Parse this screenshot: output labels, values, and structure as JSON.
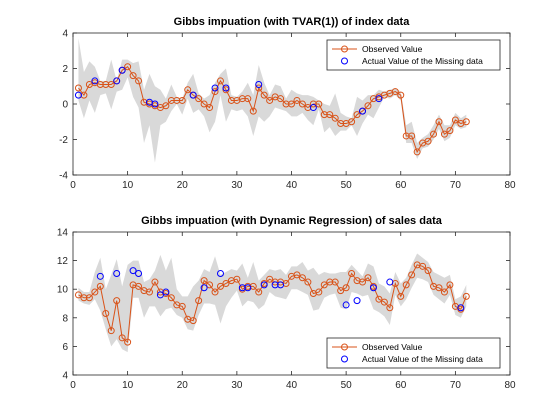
{
  "chart_data": [
    {
      "type": "line",
      "title": "Gibbs impuation (with TVAR(1)) of index data",
      "xlabel": "",
      "ylabel": "",
      "xlim": [
        0,
        80
      ],
      "ylim": [
        -4,
        4
      ],
      "xticks": [
        0,
        10,
        20,
        30,
        40,
        50,
        60,
        70,
        80
      ],
      "yticks": [
        -4,
        -2,
        0,
        2,
        4
      ],
      "legend_position": "top-right",
      "series": [
        {
          "name": "Observed Value",
          "style": "line-with-circle-markers",
          "color": "#d95319",
          "x": [
            1,
            2,
            3,
            4,
            5,
            6,
            7,
            8,
            9,
            10,
            11,
            12,
            13,
            14,
            15,
            16,
            17,
            18,
            19,
            20,
            21,
            22,
            23,
            24,
            25,
            26,
            27,
            28,
            29,
            30,
            31,
            32,
            33,
            34,
            35,
            36,
            37,
            38,
            39,
            40,
            41,
            42,
            43,
            44,
            45,
            46,
            47,
            48,
            49,
            50,
            51,
            52,
            53,
            54,
            55,
            56,
            57,
            58,
            59,
            60,
            61,
            62,
            63,
            64,
            65,
            66,
            67,
            68,
            69,
            70,
            71,
            72
          ],
          "y": [
            0.9,
            0.5,
            1.1,
            1.2,
            1.1,
            1.1,
            1.1,
            1.3,
            1.9,
            2.1,
            1.6,
            1.3,
            0.1,
            0.0,
            -0.1,
            -0.2,
            -0.1,
            0.2,
            0.2,
            0.2,
            0.8,
            0.5,
            0.3,
            0.0,
            -0.2,
            0.7,
            1.3,
            0.8,
            0.2,
            0.2,
            0.3,
            0.3,
            -0.4,
            0.9,
            0.5,
            0.2,
            0.4,
            0.3,
            0.0,
            0.0,
            0.2,
            0.0,
            -0.2,
            0.0,
            0.0,
            -0.6,
            -0.6,
            -0.8,
            -1.1,
            -1.1,
            -1.0,
            -0.6,
            -0.4,
            -0.1,
            0.3,
            0.4,
            0.5,
            0.6,
            0.7,
            0.5,
            -1.8,
            -1.8,
            -2.7,
            -2.2,
            -2.1,
            -1.7,
            -1.0,
            -1.7,
            -1.5,
            -0.9,
            -1.1,
            -1.0
          ]
        },
        {
          "name": "Actual Value of the Missing data",
          "style": "markers-only",
          "color": "#0000ff",
          "points": [
            [
              1,
              0.5
            ],
            [
              4,
              1.3
            ],
            [
              8,
              1.3
            ],
            [
              9,
              1.9
            ],
            [
              14,
              0.1
            ],
            [
              15,
              0.0
            ],
            [
              22,
              0.5
            ],
            [
              26,
              0.9
            ],
            [
              28,
              0.9
            ],
            [
              34,
              1.1
            ],
            [
              44,
              -0.2
            ],
            [
              53,
              -0.4
            ],
            [
              56,
              0.3
            ]
          ]
        }
      ],
      "bands": [
        {
          "label": "",
          "color": "#d9d9d9",
          "x": [
            1,
            2,
            3,
            4,
            5,
            6,
            7,
            8,
            9,
            10,
            11,
            12,
            13,
            14,
            15,
            16,
            17,
            18,
            19,
            20,
            21,
            22,
            23,
            24,
            25,
            26,
            27,
            28,
            29,
            30,
            31,
            32,
            33,
            34,
            35,
            36,
            37,
            38,
            39,
            40,
            41,
            42,
            43,
            44,
            45,
            46,
            47,
            48,
            49,
            50,
            51,
            52,
            53,
            54,
            55,
            56,
            57,
            58,
            59,
            60,
            61,
            62,
            63,
            64,
            65,
            66,
            67,
            68,
            69,
            70,
            71,
            72
          ],
          "upper": [
            3.7,
            1.8,
            2.4,
            2.1,
            1.3,
            1.3,
            2.5,
            1.3,
            2.5,
            2.5,
            2.3,
            2.4,
            0.8,
            1.7,
            1.0,
            0.8,
            0.3,
            1.1,
            0.4,
            0.3,
            1.2,
            1.7,
            0.6,
            0.3,
            0.5,
            1.2,
            1.7,
            2.0,
            0.5,
            0.4,
            0.7,
            1.2,
            0.5,
            2.2,
            1.2,
            0.5,
            1.1,
            1.0,
            0.3,
            0.8,
            0.6,
            0.5,
            0.5,
            0.4,
            0.2,
            0.0,
            -0.1,
            0.6,
            -0.5,
            -0.7,
            -0.8,
            0.4,
            0.2,
            0.5,
            0.5,
            0.8,
            0.7,
            0.8,
            0.9,
            0.7,
            -1.2,
            -1.0,
            -2.2,
            -1.9,
            -1.7,
            -1.2,
            -0.6,
            -1.2,
            -1.2,
            -0.5,
            -0.8,
            -0.6
          ],
          "lower": [
            0.2,
            -0.8,
            0.2,
            -0.5,
            0.5,
            0.6,
            -0.3,
            0.7,
            0.8,
            1.5,
            0.4,
            -0.2,
            -2.2,
            -1.2,
            -3.3,
            -1.2,
            -1.0,
            -0.4,
            0.0,
            -0.6,
            0.3,
            -0.5,
            -0.3,
            -0.7,
            -1.6,
            -1.0,
            0.5,
            -1.0,
            -0.3,
            -0.4,
            -0.3,
            -0.7,
            -1.8,
            -0.7,
            -1.0,
            -0.7,
            -0.2,
            -0.3,
            -0.4,
            -0.7,
            -0.7,
            -0.5,
            -0.9,
            -1.2,
            -0.3,
            -1.6,
            -1.3,
            -1.8,
            -1.5,
            -1.5,
            -1.2,
            -1.8,
            -1.1,
            -0.6,
            -0.8,
            -0.2,
            0.4,
            0.3,
            0.5,
            0.2,
            -2.2,
            -2.2,
            -3.1,
            -2.5,
            -2.4,
            -2.0,
            -1.4,
            -2.1,
            -1.9,
            -1.2,
            -1.4,
            -1.3
          ]
        }
      ]
    },
    {
      "type": "line",
      "title": "Gibbs impuation (with Dynamic Regression) of sales data",
      "xlabel": "",
      "ylabel": "",
      "xlim": [
        0,
        80
      ],
      "ylim": [
        4,
        14
      ],
      "xticks": [
        0,
        10,
        20,
        30,
        40,
        50,
        60,
        70,
        80
      ],
      "yticks": [
        4,
        6,
        8,
        10,
        12,
        14
      ],
      "legend_position": "bottom-right",
      "series": [
        {
          "name": "Observed Value",
          "style": "line-with-circle-markers",
          "color": "#d95319",
          "x": [
            1,
            2,
            3,
            4,
            5,
            6,
            7,
            8,
            9,
            10,
            11,
            12,
            13,
            14,
            15,
            16,
            17,
            18,
            19,
            20,
            21,
            22,
            23,
            24,
            25,
            26,
            27,
            28,
            29,
            30,
            31,
            32,
            33,
            34,
            35,
            36,
            37,
            38,
            39,
            40,
            41,
            42,
            43,
            44,
            45,
            46,
            47,
            48,
            49,
            50,
            51,
            52,
            53,
            54,
            55,
            56,
            57,
            58,
            59,
            60,
            61,
            62,
            63,
            64,
            65,
            66,
            67,
            68,
            69,
            70,
            71,
            72
          ],
          "y": [
            9.6,
            9.4,
            9.4,
            9.8,
            10.2,
            8.3,
            7.1,
            9.2,
            6.6,
            6.3,
            10.3,
            10.2,
            9.9,
            9.8,
            10.5,
            9.8,
            9.7,
            9.4,
            8.9,
            8.8,
            7.9,
            7.8,
            9.2,
            10.6,
            10.3,
            9.8,
            10.2,
            10.4,
            10.6,
            10.7,
            10.0,
            10.2,
            10.2,
            9.8,
            10.4,
            10.7,
            10.5,
            10.5,
            10.4,
            10.9,
            11.0,
            10.8,
            10.5,
            9.7,
            9.8,
            10.3,
            10.5,
            10.5,
            9.9,
            10.1,
            11.1,
            10.6,
            10.5,
            10.8,
            10.2,
            9.3,
            9.1,
            8.7,
            10.4,
            9.5,
            10.3,
            11.0,
            11.7,
            11.6,
            11.3,
            10.2,
            10.1,
            9.8,
            10.3,
            8.8,
            8.6,
            9.5
          ]
        },
        {
          "name": "Actual Value of the Missing data",
          "style": "markers-only",
          "color": "#0000ff",
          "points": [
            [
              5,
              10.9
            ],
            [
              8,
              11.1
            ],
            [
              11,
              11.3
            ],
            [
              12,
              11.1
            ],
            [
              16,
              9.6
            ],
            [
              17,
              9.8
            ],
            [
              24,
              10.1
            ],
            [
              27,
              11.1
            ],
            [
              31,
              10.1
            ],
            [
              32,
              10.1
            ],
            [
              35,
              10.3
            ],
            [
              37,
              10.3
            ],
            [
              38,
              10.3
            ],
            [
              50,
              8.9
            ],
            [
              52,
              9.2
            ],
            [
              55,
              10.1
            ],
            [
              58,
              10.5
            ],
            [
              71,
              8.7
            ]
          ]
        }
      ],
      "bands": [
        {
          "label": "",
          "color": "#d9d9d9",
          "x": [
            1,
            2,
            3,
            4,
            5,
            6,
            7,
            8,
            9,
            10,
            11,
            12,
            13,
            14,
            15,
            16,
            17,
            18,
            19,
            20,
            21,
            22,
            23,
            24,
            25,
            26,
            27,
            28,
            29,
            30,
            31,
            32,
            33,
            34,
            35,
            36,
            37,
            38,
            39,
            40,
            41,
            42,
            43,
            44,
            45,
            46,
            47,
            48,
            49,
            50,
            51,
            52,
            53,
            54,
            55,
            56,
            57,
            58,
            59,
            60,
            61,
            62,
            63,
            64,
            65,
            66,
            67,
            68,
            69,
            70,
            71,
            72
          ],
          "upper": [
            10.1,
            9.8,
            9.8,
            11.2,
            12.2,
            10.0,
            11.0,
            12.1,
            10.2,
            11.7,
            12.0,
            12.0,
            10.5,
            10.7,
            11.3,
            12.4,
            11.3,
            12.2,
            10.0,
            9.5,
            9.5,
            10.2,
            10.6,
            11.4,
            11.2,
            12.3,
            11.0,
            11.2,
            11.4,
            11.3,
            11.8,
            10.8,
            11.9,
            10.6,
            11.0,
            11.4,
            11.3,
            11.4,
            11.0,
            11.6,
            11.6,
            11.9,
            11.3,
            11.5,
            11.0,
            11.2,
            11.1,
            11.1,
            11.2,
            11.2,
            11.7,
            11.3,
            10.9,
            11.8,
            11.6,
            10.4,
            10.2,
            9.7,
            11.2,
            10.4,
            10.8,
            11.7,
            12.5,
            12.2,
            11.9,
            11.2,
            11.0,
            10.8,
            11.0,
            9.3,
            9.5,
            10.3
          ],
          "lower": [
            9.2,
            9.0,
            8.9,
            9.3,
            8.5,
            7.2,
            6.0,
            6.5,
            5.8,
            5.6,
            9.4,
            9.4,
            8.0,
            8.8,
            8.8,
            8.1,
            8.6,
            8.7,
            8.2,
            8.0,
            7.2,
            7.1,
            8.2,
            9.0,
            9.0,
            8.9,
            7.6,
            8.8,
            9.4,
            9.9,
            8.8,
            9.2,
            9.1,
            8.6,
            8.9,
            9.8,
            9.5,
            9.4,
            9.3,
            10.0,
            10.0,
            9.8,
            9.6,
            8.5,
            8.6,
            9.4,
            9.6,
            9.7,
            8.7,
            8.6,
            9.8,
            9.7,
            9.5,
            9.6,
            8.6,
            8.4,
            8.1,
            7.5,
            9.6,
            8.8,
            9.3,
            10.1,
            10.8,
            10.7,
            10.5,
            9.6,
            9.3,
            9.0,
            9.6,
            8.2,
            8.0,
            8.8
          ]
        }
      ]
    }
  ]
}
